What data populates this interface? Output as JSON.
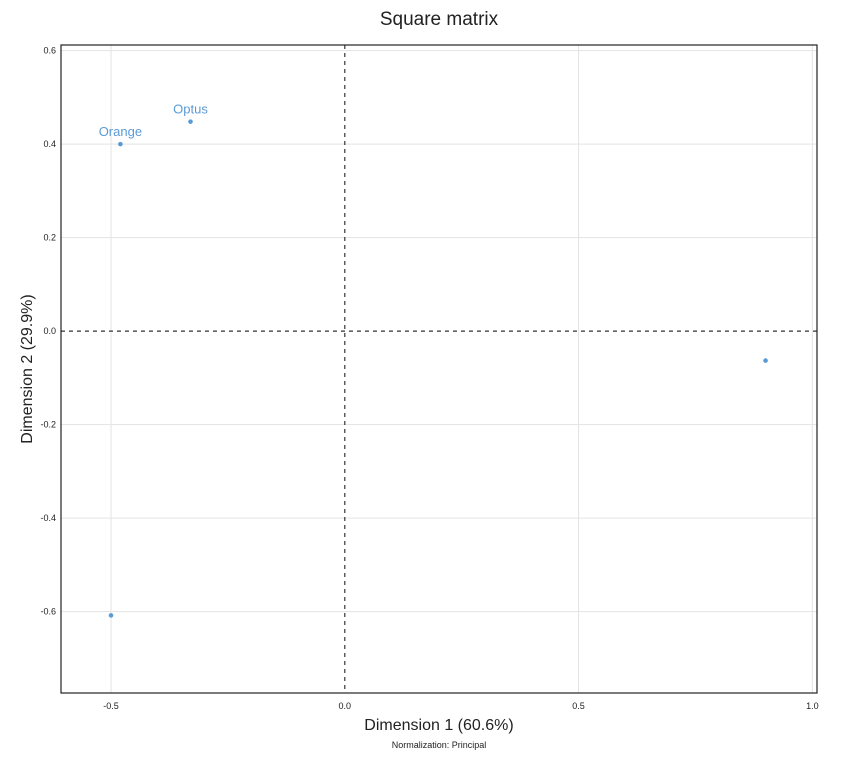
{
  "chart_data": {
    "type": "scatter",
    "title": "Square matrix",
    "xlabel": "Dimension 1 (60.6%)",
    "ylabel": "Dimension 2 (29.9%)",
    "caption": "Normalization: Principal",
    "xlim": [
      -0.607,
      1.01
    ],
    "ylim": [
      -0.774,
      0.612
    ],
    "xticks": [
      -0.5,
      0.0,
      0.5,
      1.0
    ],
    "xtick_labels": [
      "-0.5",
      "0.0",
      "0.5",
      "1.0"
    ],
    "yticks": [
      0.6,
      0.4,
      0.2,
      0.0,
      -0.2,
      -0.4,
      -0.6
    ],
    "ytick_labels": [
      "0.6",
      "0.4",
      "0.2",
      "0.0",
      "-0.2",
      "-0.4",
      "-0.6"
    ],
    "grid": true,
    "zero_lines": true,
    "color": "#5b9bd5",
    "points": [
      {
        "x": -0.33,
        "y": 0.448,
        "label": "Optus"
      },
      {
        "x": -0.48,
        "y": 0.4,
        "label": "Orange"
      },
      {
        "x": 0.9,
        "y": -0.063,
        "label": ""
      },
      {
        "x": -0.5,
        "y": -0.608,
        "label": ""
      }
    ]
  }
}
